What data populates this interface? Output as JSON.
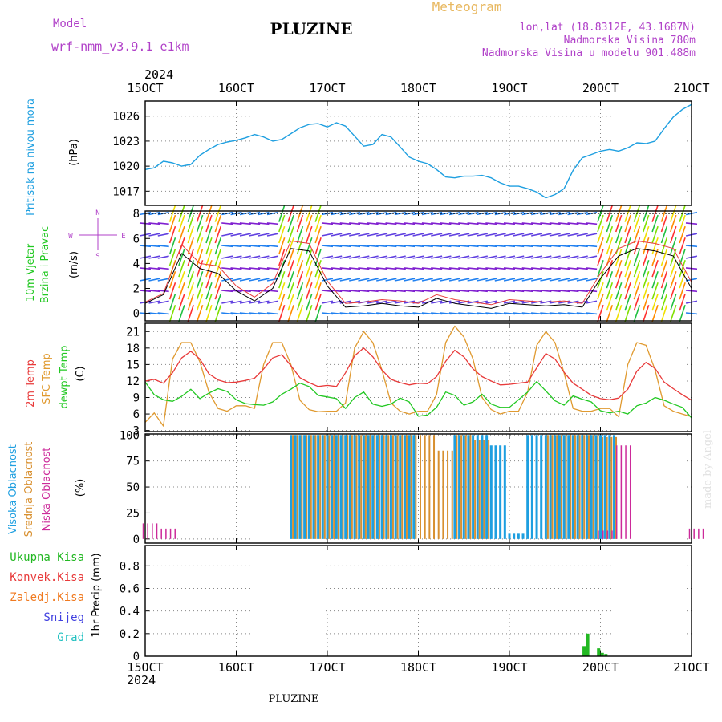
{
  "header": {
    "model_label": "Model",
    "model_name": "wrf-nmm_v3.9.1  e1km",
    "station": "PLUZINE",
    "title": "Meteogram",
    "lonlat": "lon,lat (18.8312E, 43.1687N)",
    "elevation": "Nadmorska Visina 780m",
    "model_elevation": "Nadmorska Visina u modelu 901.488m"
  },
  "footer": {
    "station": "PLUZINE",
    "credit": "made by Angel"
  },
  "colors": {
    "magenta": "#b040c8",
    "pressure": "#1e9fe0",
    "temp2m": "#e83a3a",
    "sfc_temp": "#e09a30",
    "dewpoint": "#22c822",
    "high_cloud": "#1e9fe0",
    "mid_cloud": "#d89030",
    "low_cloud": "#cc2a9a",
    "total_precip": "#22b822",
    "conv_precip": "#e83a3a",
    "frozen_precip": "#f07a20",
    "snow": "#4040e0",
    "hail": "#20c0c0",
    "gold": "#e8b860"
  },
  "time_axis": {
    "year": "2024",
    "ticks": [
      "15OCT",
      "16OCT",
      "17OCT",
      "18OCT",
      "19OCT",
      "20OCT",
      "21OCT"
    ]
  },
  "chart_data": [
    {
      "type": "line",
      "panel": "pressure",
      "ylabel_title": "Pritisak na nivou mora",
      "ylabel_unit": "(hPa)",
      "ylim": [
        1015.3,
        1027.8
      ],
      "yticks": [
        "1017",
        "1020",
        "1023",
        "1026"
      ],
      "grid": true,
      "x": [
        15.0,
        15.1,
        15.2,
        15.3,
        15.4,
        15.5,
        15.6,
        15.7,
        15.8,
        15.9,
        16.0,
        16.1,
        16.2,
        16.3,
        16.4,
        16.5,
        16.6,
        16.7,
        16.8,
        16.9,
        17.0,
        17.1,
        17.2,
        17.3,
        17.4,
        17.5,
        17.6,
        17.7,
        17.8,
        17.9,
        18.0,
        18.1,
        18.2,
        18.3,
        18.4,
        18.5,
        18.6,
        18.7,
        18.8,
        18.9,
        19.0,
        19.1,
        19.2,
        19.3,
        19.4,
        19.5,
        19.6,
        19.7,
        19.8,
        19.9,
        20.0,
        20.1,
        20.2,
        20.3,
        20.4,
        20.5,
        20.6,
        20.7,
        20.8,
        20.9,
        21.0
      ],
      "series": [
        {
          "values": [
            1019.6,
            1019.8,
            1020.6,
            1020.4,
            1020.0,
            1020.2,
            1021.3,
            1022.0,
            1022.6,
            1022.9,
            1023.1,
            1023.4,
            1023.8,
            1023.5,
            1023.0,
            1023.2,
            1023.9,
            1024.6,
            1025.0,
            1025.1,
            1024.7,
            1025.2,
            1024.8,
            1023.6,
            1022.4,
            1022.6,
            1023.8,
            1023.5,
            1022.3,
            1021.1,
            1020.6,
            1020.3,
            1019.6,
            1018.7,
            1018.6,
            1018.8,
            1018.8,
            1018.9,
            1018.6,
            1018.0,
            1017.6,
            1017.6,
            1017.3,
            1016.9,
            1016.2,
            1016.6,
            1017.3,
            1019.5,
            1021.0,
            1021.4,
            1021.8,
            1022.0,
            1021.8,
            1022.2,
            1022.8,
            1022.7,
            1023.0,
            1024.5,
            1025.9,
            1026.8,
            1027.4
          ]
        }
      ]
    },
    {
      "type": "line",
      "panel": "wind",
      "ylabel_title": "10m Vjetar",
      "ylabel_title2": "Brzina i Pravac",
      "ylabel_unit": "(m/s)",
      "compass": {
        "n": "N",
        "s": "S",
        "e": "E",
        "w": "W"
      },
      "ylim": [
        -0.6,
        8.2
      ],
      "yticks": [
        "0",
        "2",
        "4",
        "6",
        "8"
      ],
      "barb_levels": [
        0.0,
        0.9,
        1.8,
        2.7,
        3.6,
        4.5,
        5.4,
        6.3,
        7.2,
        8.0
      ],
      "x": [
        15.0,
        15.2,
        15.4,
        15.6,
        15.8,
        16.0,
        16.2,
        16.4,
        16.6,
        16.8,
        17.0,
        17.2,
        17.4,
        17.6,
        17.8,
        18.0,
        18.2,
        18.4,
        18.6,
        18.8,
        19.0,
        19.2,
        19.4,
        19.6,
        19.8,
        20.0,
        20.2,
        20.4,
        20.6,
        20.8,
        21.0
      ],
      "series": [
        {
          "name": "10m speed",
          "values": [
            0.8,
            1.5,
            4.8,
            3.6,
            3.2,
            1.8,
            1.0,
            2.0,
            5.2,
            5.0,
            2.2,
            0.5,
            0.6,
            0.8,
            0.6,
            0.5,
            1.2,
            0.8,
            0.6,
            0.4,
            0.8,
            0.7,
            0.6,
            0.7,
            0.5,
            2.8,
            4.6,
            5.2,
            5.0,
            4.6,
            2.0
          ]
        },
        {
          "name": "gust",
          "values": [
            0.9,
            1.6,
            5.5,
            4.0,
            3.8,
            2.2,
            1.3,
            2.4,
            5.8,
            5.6,
            2.6,
            0.8,
            0.9,
            1.1,
            1.0,
            0.8,
            1.5,
            1.1,
            0.9,
            0.7,
            1.1,
            1.0,
            0.9,
            1.0,
            0.8,
            3.2,
            5.2,
            5.8,
            5.6,
            5.2,
            2.5
          ]
        }
      ]
    },
    {
      "type": "line",
      "panel": "temperature",
      "ylabel_title": "2m Temp",
      "ylabel_title2": "SFC Temp",
      "ylabel_title3": "dewpt Temp",
      "ylabel_unit": "(C)",
      "ylim": [
        2.8,
        22.5
      ],
      "yticks": [
        "3",
        "6",
        "9",
        "12",
        "15",
        "18",
        "21"
      ],
      "grid": true,
      "x": [
        15.0,
        15.1,
        15.2,
        15.3,
        15.4,
        15.5,
        15.6,
        15.7,
        15.8,
        15.9,
        16.0,
        16.1,
        16.2,
        16.3,
        16.4,
        16.5,
        16.6,
        16.7,
        16.8,
        16.9,
        17.0,
        17.1,
        17.2,
        17.3,
        17.4,
        17.5,
        17.6,
        17.7,
        17.8,
        17.9,
        18.0,
        18.1,
        18.2,
        18.3,
        18.4,
        18.5,
        18.6,
        18.7,
        18.8,
        18.9,
        19.0,
        19.1,
        19.2,
        19.3,
        19.4,
        19.5,
        19.6,
        19.7,
        19.8,
        19.9,
        20.0,
        20.1,
        20.2,
        20.3,
        20.4,
        20.5,
        20.6,
        20.7,
        20.8,
        20.9,
        21.0
      ],
      "series": [
        {
          "name": "2m Temp",
          "values": [
            12.0,
            12.3,
            11.6,
            13.5,
            16.2,
            17.4,
            16.0,
            13.3,
            12.2,
            11.7,
            11.8,
            12.1,
            12.5,
            14.2,
            16.2,
            16.8,
            14.8,
            12.6,
            11.7,
            11.0,
            11.2,
            11.0,
            13.5,
            16.6,
            18.0,
            16.4,
            14.0,
            12.3,
            11.7,
            11.3,
            11.6,
            11.5,
            12.8,
            15.6,
            17.6,
            16.4,
            14.2,
            12.8,
            12.0,
            11.3,
            11.4,
            11.6,
            11.8,
            14.4,
            17.0,
            16.0,
            13.6,
            11.6,
            10.5,
            9.4,
            8.8,
            8.6,
            8.9,
            10.5,
            13.8,
            15.4,
            14.3,
            11.8,
            10.6,
            9.5,
            8.5
          ]
        },
        {
          "name": "SFC Temp",
          "values": [
            4.5,
            6.2,
            3.8,
            16.0,
            19.0,
            19.0,
            15.5,
            10.0,
            7.0,
            6.5,
            7.5,
            7.5,
            7.0,
            15.0,
            19.0,
            19.0,
            15.0,
            8.5,
            6.8,
            6.4,
            6.5,
            6.5,
            8.0,
            18.0,
            21.0,
            19.0,
            14.0,
            8.0,
            6.5,
            6.0,
            6.5,
            6.5,
            9.5,
            19.0,
            22.0,
            20.0,
            16.0,
            9.0,
            6.8,
            6.0,
            6.5,
            6.5,
            10.0,
            18.5,
            21.0,
            19.0,
            13.5,
            7.0,
            6.5,
            6.5,
            7.0,
            7.0,
            5.5,
            15.0,
            19.0,
            18.5,
            14.0,
            7.5,
            6.5,
            6.0,
            5.5
          ]
        },
        {
          "name": "dewpt Temp",
          "values": [
            11.8,
            9.5,
            8.6,
            8.3,
            9.2,
            10.5,
            8.8,
            9.8,
            10.6,
            10.1,
            8.6,
            7.9,
            7.7,
            7.6,
            8.2,
            9.6,
            10.5,
            11.6,
            11.0,
            9.4,
            9.1,
            8.8,
            7.0,
            9.0,
            10.0,
            7.8,
            7.4,
            7.8,
            8.9,
            8.2,
            5.6,
            5.8,
            7.2,
            10.0,
            9.4,
            7.6,
            8.2,
            9.6,
            7.8,
            7.2,
            7.2,
            8.6,
            10.0,
            11.9,
            10.2,
            8.4,
            7.6,
            9.3,
            8.7,
            8.2,
            6.6,
            6.2,
            6.5,
            6.0,
            7.5,
            8.0,
            9.0,
            8.5,
            7.8,
            7.2,
            5.3
          ]
        }
      ]
    },
    {
      "type": "bar",
      "panel": "cloud",
      "ylabel_title": "Visoka Oblacnost",
      "ylabel_title2": "Srednja Oblacnost",
      "ylabel_title3": "Niska Oblacnost",
      "ylabel_unit": "(%)",
      "ylim": [
        -4,
        101
      ],
      "yticks": [
        "0",
        "25",
        "50",
        "75",
        "100"
      ],
      "grid": true,
      "x": [
        15.0,
        15.2,
        15.4,
        15.6,
        15.8,
        16.0,
        16.2,
        16.4,
        16.6,
        16.8,
        17.0,
        17.2,
        17.4,
        17.6,
        17.8,
        18.0,
        18.2,
        18.4,
        18.6,
        18.8,
        19.0,
        19.2,
        19.4,
        19.6,
        19.8,
        20.0,
        20.2,
        20.4,
        20.6,
        20.8,
        21.0
      ],
      "series": [
        {
          "name": "Visoka Oblacnost",
          "values": [
            0,
            0,
            0,
            0,
            0,
            0,
            0,
            0,
            100,
            100,
            100,
            100,
            100,
            100,
            100,
            0,
            0,
            100,
            100,
            90,
            5,
            100,
            100,
            100,
            100,
            100,
            0,
            0,
            0,
            0,
            0
          ]
        },
        {
          "name": "Srednja Oblacnost",
          "values": [
            0,
            0,
            0,
            0,
            0,
            0,
            0,
            0,
            100,
            100,
            100,
            100,
            100,
            100,
            100,
            100,
            85,
            100,
            95,
            0,
            0,
            0,
            100,
            100,
            100,
            98,
            0,
            0,
            0,
            0,
            0
          ]
        },
        {
          "name": "Niska Oblacnost",
          "values": [
            15,
            10,
            0,
            0,
            0,
            0,
            0,
            0,
            0,
            0,
            0,
            0,
            0,
            0,
            0,
            0,
            0,
            0,
            0,
            0,
            0,
            0,
            0,
            0,
            0,
            8,
            90,
            0,
            0,
            0,
            10
          ]
        }
      ]
    },
    {
      "type": "bar",
      "panel": "precip",
      "ylabel_title": "1hr Precip (mm)",
      "ylim": [
        0,
        0.98
      ],
      "yticks": [
        "0",
        "0.2",
        "0.4",
        "0.6",
        "0.8"
      ],
      "grid": true,
      "legend": [
        "Ukupna Kisa",
        "Konvek.Kisa",
        "Zaledj.Kisa",
        "Snijeg",
        "Grad"
      ],
      "x": [
        19.82,
        19.86,
        19.98,
        20.02,
        20.06
      ],
      "series": [
        {
          "name": "Ukupna Kisa",
          "values": [
            0.09,
            0.2,
            0.07,
            0.03,
            0.02
          ]
        }
      ]
    }
  ]
}
